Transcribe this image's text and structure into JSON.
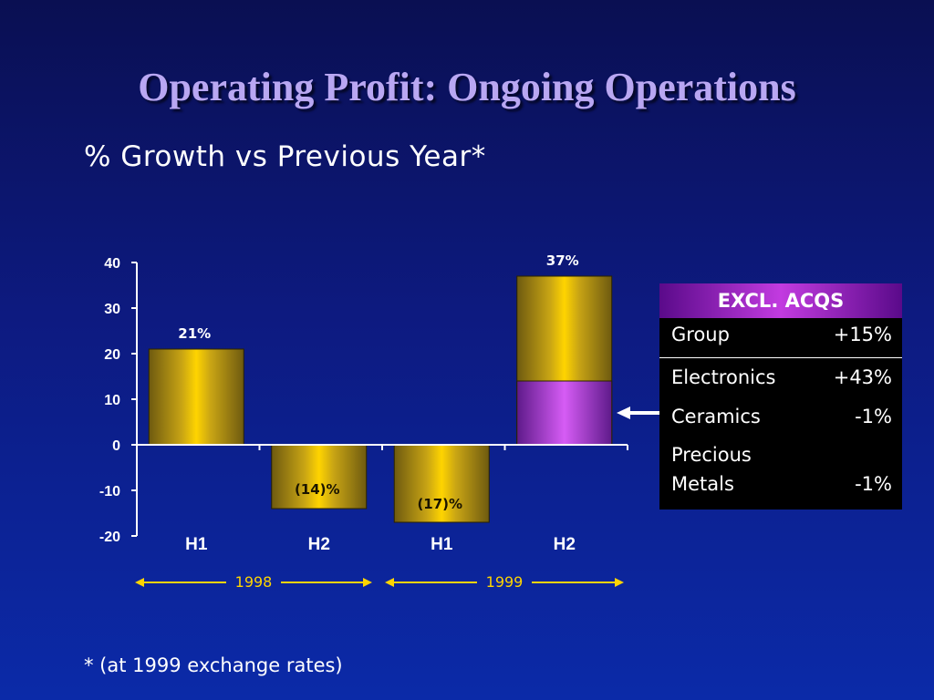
{
  "title": "Operating Profit: Ongoing Operations",
  "subtitle": "% Growth vs Previous Year*",
  "chart_data": {
    "type": "bar",
    "categories": [
      "H1",
      "H2",
      "H1",
      "H2"
    ],
    "groups": [
      "1998",
      "1999"
    ],
    "values": [
      21,
      -14,
      -17,
      37
    ],
    "value_labels": [
      "21%",
      "(14)%",
      "(17)%",
      "37%"
    ],
    "acquisition_split": {
      "category_index": 3,
      "excl_acqs_value": 14
    },
    "ylim": [
      -20,
      40
    ],
    "yticks": [
      40,
      30,
      20,
      10,
      0,
      -10,
      -20
    ],
    "title": "",
    "xlabel": "",
    "ylabel": "",
    "colors": {
      "bar": "#c9a514",
      "bar_highlight": "#ffd400",
      "acq_excl": "#c04de0",
      "year_arrow": "#ffd400"
    }
  },
  "excl_acqs": {
    "header": "EXCL. ACQS",
    "group": {
      "name": "Group",
      "value": "+15%"
    },
    "rows": [
      {
        "name": "Electronics",
        "value": "+43%"
      },
      {
        "name": "Ceramics",
        "value": "-1%"
      },
      {
        "name_line1": "Precious",
        "name_line2": "Metals",
        "value": "-1%"
      }
    ]
  },
  "footnote": "* (at 1999 exchange rates)"
}
